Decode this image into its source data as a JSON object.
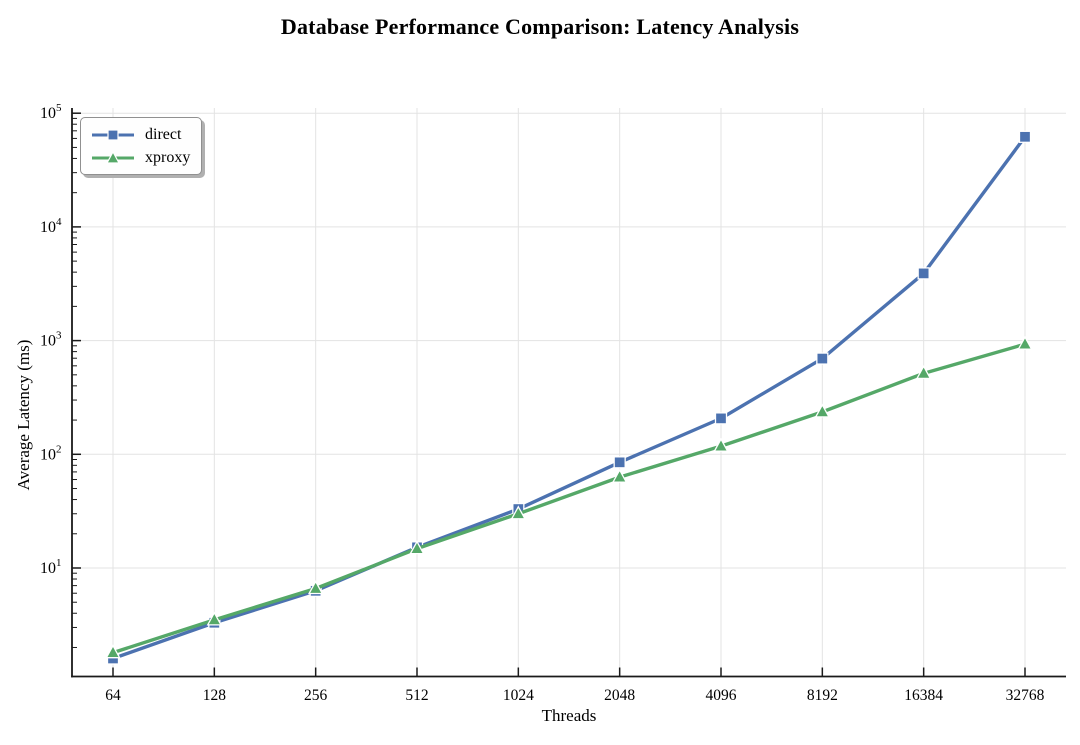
{
  "figure": {
    "background": "#ffffff"
  },
  "chart_data": {
    "type": "line",
    "title": "Database Performance Comparison: Latency Analysis",
    "xlabel": "Threads",
    "ylabel": "Average Latency (ms)",
    "x_scale": "log2",
    "y_scale": "log10",
    "grid": true,
    "legend_position": "upper-left",
    "categories": [
      64,
      128,
      256,
      512,
      1024,
      2048,
      4096,
      8192,
      16384,
      32768
    ],
    "x_tick_labels": [
      "64",
      "128",
      "256",
      "512",
      "1024",
      "2048",
      "4096",
      "8192",
      "16384",
      "32768"
    ],
    "y_tick_exponents": [
      1,
      2,
      3,
      4,
      5
    ],
    "ylim": [
      1.12,
      111000
    ],
    "series": [
      {
        "name": "direct",
        "color": "#4C72B0",
        "marker": "square",
        "values": [
          1.6,
          3.3,
          6.3,
          15.2,
          33,
          85,
          207,
          695,
          3900,
          62000
        ]
      },
      {
        "name": "xproxy",
        "color": "#55A868",
        "marker": "triangle-up",
        "values": [
          1.8,
          3.5,
          6.6,
          14.8,
          30,
          63,
          118,
          236,
          515,
          930
        ]
      }
    ]
  }
}
